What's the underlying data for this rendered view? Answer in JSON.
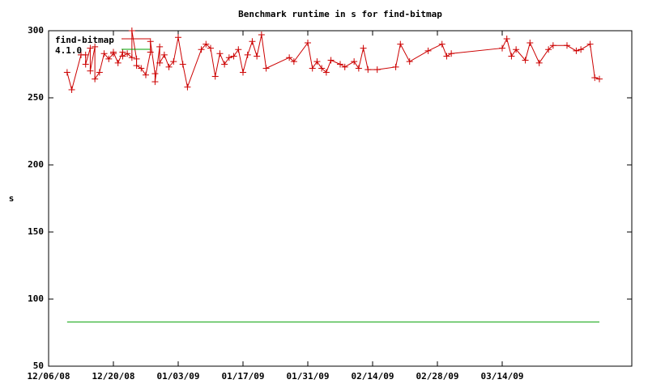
{
  "chart_data": {
    "type": "line",
    "title": "Benchmark runtime in s for find-bitmap",
    "y_label": "s",
    "xlim": [
      "2008-12-06",
      "2009-04-11"
    ],
    "xticks": [
      {
        "value": "2008-12-06",
        "label": "12/06/08"
      },
      {
        "value": "2008-12-20",
        "label": "12/20/08"
      },
      {
        "value": "2009-01-03",
        "label": "01/03/09"
      },
      {
        "value": "2009-01-17",
        "label": "01/17/09"
      },
      {
        "value": "2009-01-31",
        "label": "01/31/09"
      },
      {
        "value": "2009-02-14",
        "label": "02/14/09"
      },
      {
        "value": "2009-02-28",
        "label": "02/28/09"
      },
      {
        "value": "2009-03-14",
        "label": "03/14/09"
      }
    ],
    "ylim": [
      50,
      300
    ],
    "yticks": [
      50,
      100,
      150,
      200,
      250,
      300
    ],
    "grid": false,
    "legend": "top-left",
    "series": [
      {
        "name": "find-bitmap",
        "color": "#cc0000",
        "markers": true,
        "x": [
          "2008-12-10",
          "2008-12-11",
          "2008-12-13",
          "2008-12-14",
          "2008-12-14",
          "2008-12-15",
          "2008-12-15",
          "2008-12-16",
          "2008-12-16",
          "2008-12-17",
          "2008-12-18",
          "2008-12-19",
          "2008-12-20",
          "2008-12-20",
          "2008-12-21",
          "2008-12-22",
          "2008-12-22",
          "2008-12-23",
          "2008-12-24",
          "2008-12-24",
          "2008-12-25",
          "2008-12-25",
          "2008-12-26",
          "2008-12-27",
          "2008-12-28",
          "2008-12-28",
          "2008-12-29",
          "2008-12-29",
          "2008-12-30",
          "2008-12-30",
          "2008-12-31",
          "2009-01-01",
          "2009-01-02",
          "2009-01-03",
          "2009-01-04",
          "2009-01-05",
          "2009-01-08",
          "2009-01-09",
          "2009-01-10",
          "2009-01-11",
          "2009-01-12",
          "2009-01-13",
          "2009-01-14",
          "2009-01-15",
          "2009-01-16",
          "2009-01-17",
          "2009-01-18",
          "2009-01-19",
          "2009-01-20",
          "2009-01-21",
          "2009-01-22",
          "2009-01-27",
          "2009-01-28",
          "2009-01-31",
          "2009-02-01",
          "2009-02-02",
          "2009-02-03",
          "2009-02-04",
          "2009-02-05",
          "2009-02-07",
          "2009-02-08",
          "2009-02-10",
          "2009-02-11",
          "2009-02-12",
          "2009-02-13",
          "2009-02-15",
          "2009-02-19",
          "2009-02-20",
          "2009-02-22",
          "2009-02-26",
          "2009-03-01",
          "2009-03-02",
          "2009-03-03",
          "2009-03-14",
          "2009-03-15",
          "2009-03-16",
          "2009-03-17",
          "2009-03-19",
          "2009-03-20",
          "2009-03-22",
          "2009-03-24",
          "2009-03-25",
          "2009-03-28",
          "2009-03-30",
          "2009-03-31",
          "2009-04-02",
          "2009-04-03",
          "2009-04-04"
        ],
        "values": [
          269,
          256,
          282,
          282,
          275,
          287,
          270,
          288,
          264,
          269,
          283,
          279,
          283,
          284,
          276,
          284,
          281,
          283,
          280,
          300,
          279,
          274,
          272,
          267,
          284,
          292,
          268,
          262,
          288,
          276,
          282,
          273,
          277,
          295,
          275,
          258,
          286,
          290,
          287,
          266,
          283,
          275,
          280,
          281,
          286,
          269,
          282,
          292,
          281,
          297,
          272,
          280,
          277,
          291,
          272,
          277,
          272,
          269,
          278,
          275,
          273,
          277,
          272,
          287,
          271,
          271,
          273,
          290,
          277,
          285,
          290,
          281,
          283,
          287,
          294,
          281,
          286,
          278,
          291,
          276,
          286,
          289,
          289,
          285,
          286,
          290,
          265,
          264
        ]
      },
      {
        "name": "4.1.0",
        "color": "#00a000",
        "markers": false,
        "x": [
          "2008-12-10",
          "2009-04-04"
        ],
        "values": [
          83,
          83
        ]
      }
    ]
  }
}
